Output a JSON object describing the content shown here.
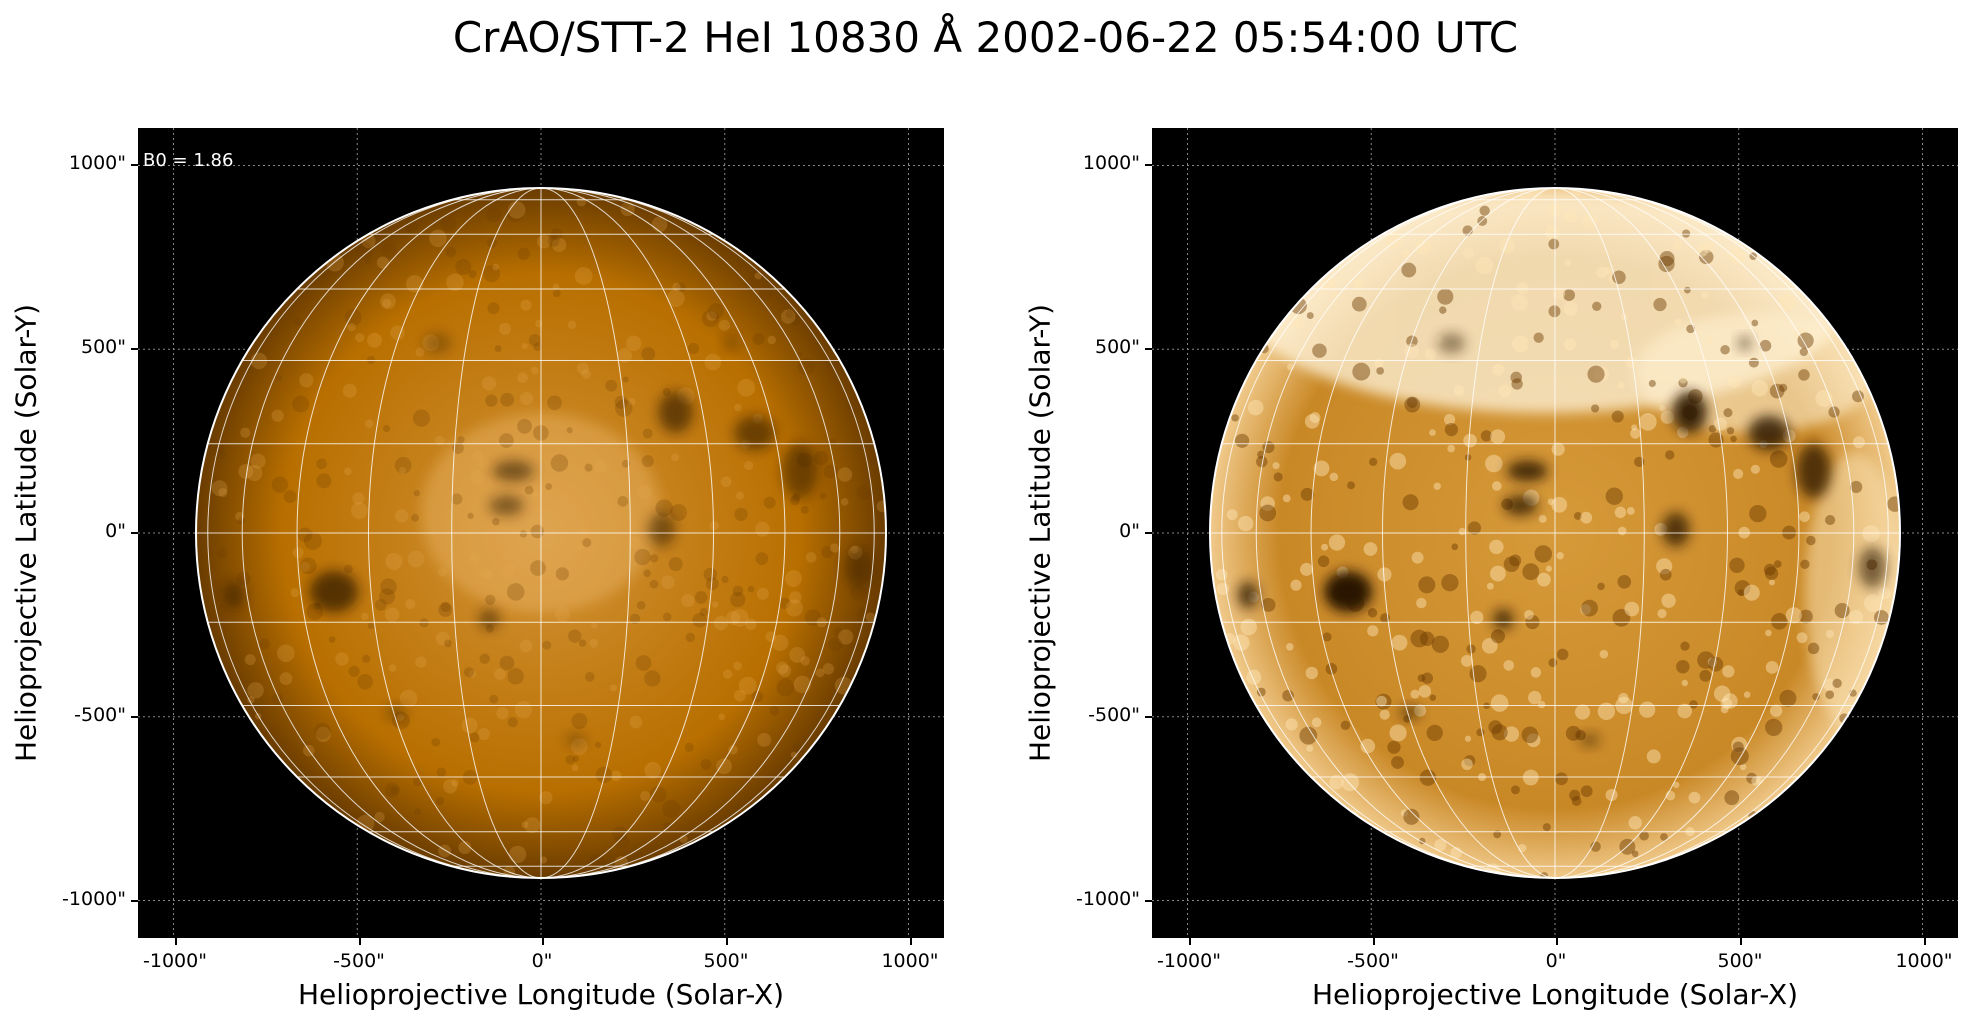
{
  "title": "CrAO/STT-2 HeI 10830 Å 2002-06-22 05:54:00 UTC",
  "colors": {
    "background": "#000000",
    "disk_base": "#b86f00",
    "disk_light": "#f4c37a",
    "disk_dark": "#2a1400",
    "grid": "#ffffff"
  },
  "panels": [
    {
      "id": "left",
      "annotation": "B0 = 1.86",
      "xlabel": "Helioprojective Longitude (Solar-X)",
      "ylabel": "Helioprojective Latitude (Solar-Y)",
      "xticks": [
        "-1000\"",
        "-500\"",
        "0\"",
        "500\"",
        "1000\""
      ],
      "yticks": [
        "1000\"",
        "500\"",
        "0\"",
        "-500\"",
        "-1000\""
      ],
      "contrast": "normal"
    },
    {
      "id": "right",
      "annotation": "",
      "xlabel": "Helioprojective Longitude (Solar-X)",
      "ylabel": "Helioprojective Latitude (Solar-Y)",
      "xticks": [
        "-1000\"",
        "-500\"",
        "0\"",
        "500\"",
        "1000\""
      ],
      "yticks": [
        "1000\"",
        "500\"",
        "0\"",
        "-500\"",
        "-1000\""
      ],
      "contrast": "enhanced"
    }
  ]
}
